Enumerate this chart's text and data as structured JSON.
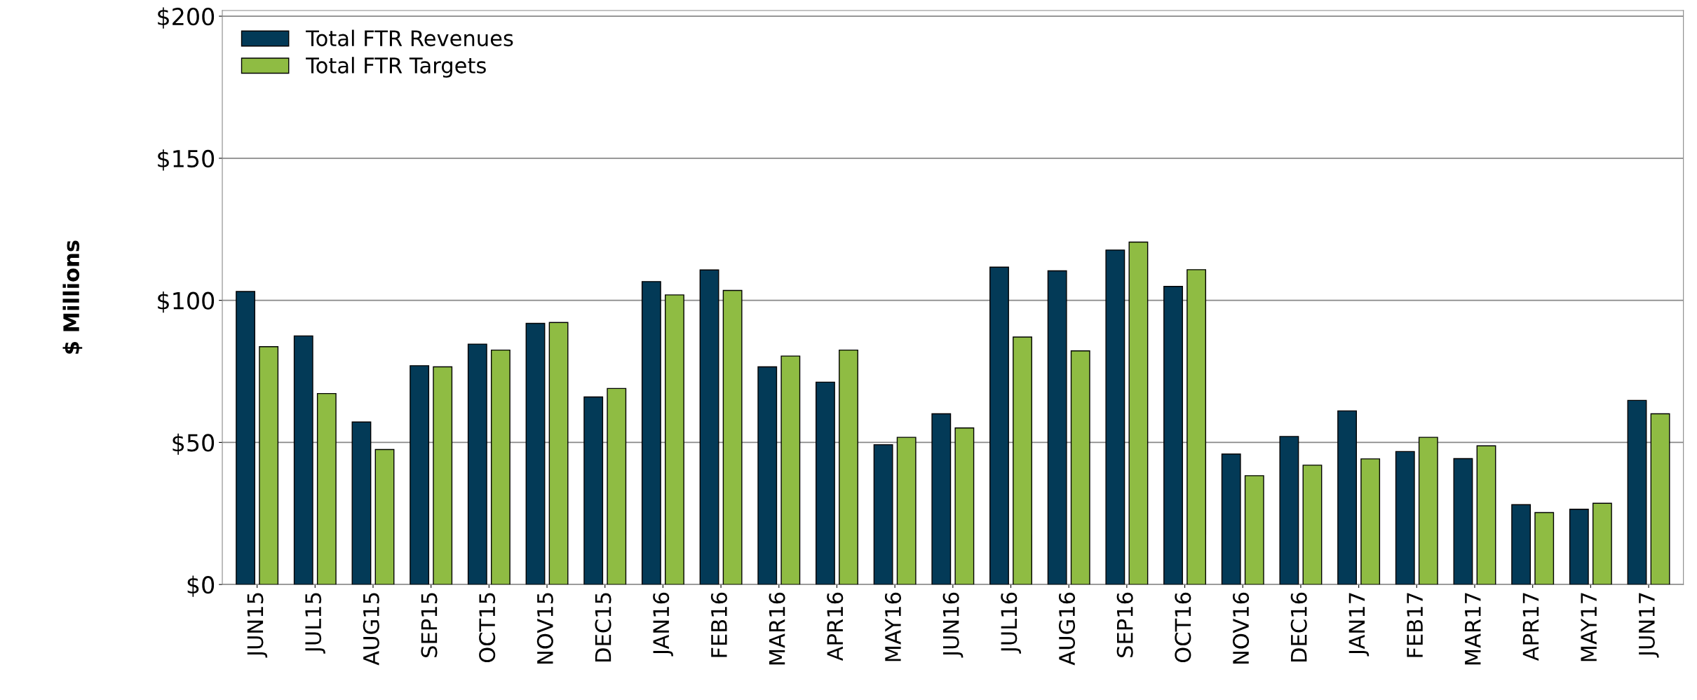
{
  "chart_data": {
    "type": "bar",
    "ylabel": "$ Millions",
    "categories": [
      "JUN15",
      "JUL15",
      "AUG15",
      "SEP15",
      "OCT15",
      "NOV15",
      "DEC15",
      "JAN16",
      "FEB16",
      "MAR16",
      "APR16",
      "MAY16",
      "JUN16",
      "JUL16",
      "AUG16",
      "SEP16",
      "OCT16",
      "NOV16",
      "DEC16",
      "JAN17",
      "FEB17",
      "MAR17",
      "APR17",
      "MAY17",
      "JUN17"
    ],
    "series": [
      {
        "name": "Total FTR Revenues",
        "color": "#033a57",
        "values": [
          103.1,
          87.5,
          57.2,
          77,
          84.6,
          91.9,
          66,
          106.6,
          110.7,
          76.6,
          71.2,
          49.2,
          60.1,
          111.7,
          110.4,
          117.7,
          104.9,
          45.9,
          52.1,
          61.1,
          46.8,
          44.3,
          28.1,
          26.5,
          64.8
        ]
      },
      {
        "name": "Total FTR Targets",
        "color": "#8fbc43",
        "values": [
          83.7,
          67.2,
          47.5,
          76.6,
          82.5,
          92.2,
          69,
          101.9,
          103.5,
          80.4,
          82.5,
          51.8,
          55.1,
          87.1,
          82.2,
          120.5,
          110.8,
          38.3,
          42,
          44.2,
          51.8,
          48.8,
          25.3,
          28.6,
          60.1
        ]
      }
    ],
    "ylim": [
      0,
      202
    ],
    "yticks": [
      {
        "value": 0,
        "label": "$0"
      },
      {
        "value": 50,
        "label": "$50"
      },
      {
        "value": 100,
        "label": "$100"
      },
      {
        "value": 150,
        "label": "$150"
      },
      {
        "value": 200,
        "label": "$200"
      }
    ],
    "grid": "y",
    "legend": "top left"
  }
}
